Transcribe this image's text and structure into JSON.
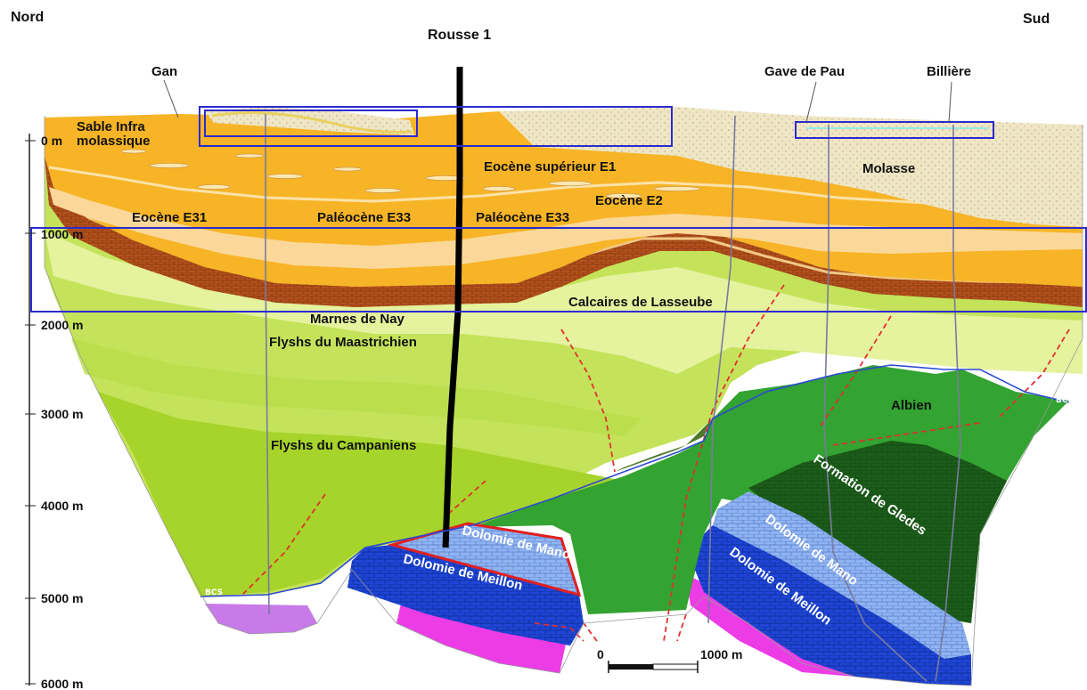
{
  "header": {
    "left": "Nord",
    "right": "Sud",
    "well": "Rousse 1"
  },
  "places": {
    "gan": "Gan",
    "gave": "Gave de Pau",
    "billiere": "Billière"
  },
  "depth_axis": [
    "0 m",
    "1000 m",
    "2000 m",
    "3000 m",
    "4000 m",
    "5000 m",
    "6000 m"
  ],
  "formations": {
    "sable": "Sable Infra",
    "sable2": "molassique",
    "molasse": "Molasse",
    "e1": "Eocène supérieur E1",
    "e2": "Eocène E2",
    "e31": "Eocène E31",
    "pal1": "Paléocène E33",
    "pal2": "Paléocène E33",
    "lasseube": "Calcaires de Lasseube",
    "nay": "Marnes de Nay",
    "maastr": "Flyshs du Maastrichien",
    "campan": "Flyshs du Campaniens",
    "albien": "Albien",
    "bcs1": "BCS",
    "bcs2": "BCS",
    "gledes": "Formation de Gledes",
    "mano1": "Dolomie de Mano",
    "meillon1": "Dolomie de Meillon",
    "mano2": "Dolomie de Mano",
    "meillon2": "Dolomie de Meillon"
  },
  "scale": {
    "start": "0",
    "end": "1000 m"
  },
  "colors": {
    "sand": "#efe3bf",
    "eocene": "#f7b426",
    "paleocene": "#b8501c",
    "flysch_light": "#eef6b8",
    "flysch": "#c8e65a",
    "flysch_deep": "#9ccc1e",
    "albien": "#2ea02e",
    "gledes": "#1b5e1b",
    "mano": "#8fb4f2",
    "meillon": "#1f45d6",
    "trias": "#e838e8",
    "frame": "#2b2bd0",
    "fault": "#e03030"
  }
}
